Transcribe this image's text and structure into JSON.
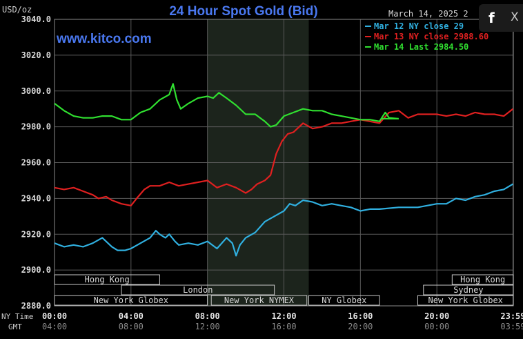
{
  "chart_data": {
    "type": "line",
    "title": "24 Hour Spot Gold (Bid)",
    "y_unit_label": "USD/oz",
    "date": "March 14, 2025 2",
    "watermark": "www.kitco.com",
    "ylim": [
      2880,
      3040
    ],
    "yticks": [
      "3040.0",
      "3020.0",
      "3000.0",
      "2980.0",
      "2960.0",
      "2940.0",
      "2920.0",
      "2900.0",
      "2880.0"
    ],
    "xlim_hours": [
      0,
      24
    ],
    "xticks_hours": [
      0,
      4,
      8,
      12,
      16,
      20,
      23.98
    ],
    "xticks_ny": [
      "00:00",
      "04:00",
      "08:00",
      "12:00",
      "16:00",
      "20:00",
      "23:59"
    ],
    "xticks_gmt": [
      "04:00",
      "08:00",
      "12:00",
      "16:00",
      "20:00",
      "00:00",
      "03:59"
    ],
    "row_label_ny": "NY Time",
    "row_label_gmt": "GMT",
    "grid": true,
    "legend_position": "top-right",
    "shaded_hours": [
      8,
      13.3
    ],
    "series": [
      {
        "name": "Mar 12 NY close 29",
        "color": "#30b0e0",
        "x": [
          0,
          0.5,
          1.0,
          1.5,
          2.0,
          2.5,
          3.0,
          3.3,
          3.7,
          4.0,
          4.5,
          5.0,
          5.3,
          5.5,
          5.8,
          6.0,
          6.3,
          6.5,
          7.0,
          7.5,
          8.0,
          8.5,
          9.0,
          9.3,
          9.5,
          9.7,
          10.0,
          10.5,
          11.0,
          11.5,
          12.0,
          12.3,
          12.6,
          13.0,
          13.5,
          14.0,
          14.5,
          15.0,
          15.5,
          16.0,
          16.5,
          17.0,
          18.0,
          19.0,
          20.0,
          20.5,
          21.0,
          21.5,
          22.0,
          22.5,
          23.0,
          23.5,
          23.98
        ],
        "y": [
          2915,
          2913,
          2914,
          2913,
          2915,
          2918,
          2913,
          2911,
          2911,
          2912,
          2915,
          2918,
          2922,
          2920,
          2918,
          2920,
          2916,
          2914,
          2915,
          2914,
          2916,
          2912,
          2918,
          2915,
          2908,
          2914,
          2918,
          2921,
          2927,
          2930,
          2933,
          2937,
          2936,
          2939,
          2938,
          2936,
          2937,
          2936,
          2935,
          2933,
          2934,
          2934,
          2935,
          2935,
          2937,
          2937,
          2940,
          2939,
          2941,
          2942,
          2944,
          2945,
          2948
        ]
      },
      {
        "name": "Mar 13 NY close 2988.60",
        "color": "#e02020",
        "x": [
          0,
          0.5,
          1.0,
          1.5,
          2.0,
          2.3,
          2.7,
          3.0,
          3.5,
          4.0,
          4.3,
          4.7,
          5.0,
          5.5,
          6.0,
          6.5,
          7.0,
          7.5,
          8.0,
          8.5,
          9.0,
          9.5,
          10.0,
          10.3,
          10.6,
          11.0,
          11.3,
          11.6,
          11.9,
          12.2,
          12.5,
          13.0,
          13.5,
          14.0,
          14.5,
          15.0,
          15.5,
          16.0,
          16.5,
          17.0,
          17.5,
          18.0,
          18.5,
          19.0,
          19.5,
          20.0,
          20.5,
          21.0,
          21.5,
          22.0,
          22.5,
          23.0,
          23.5,
          23.98
        ],
        "y": [
          2946,
          2945,
          2946,
          2944,
          2942,
          2940,
          2941,
          2939,
          2937,
          2936,
          2940,
          2945,
          2947,
          2947,
          2949,
          2947,
          2948,
          2949,
          2950,
          2946,
          2948,
          2946,
          2943,
          2945,
          2948,
          2950,
          2953,
          2965,
          2972,
          2976,
          2977,
          2982,
          2979,
          2980,
          2982,
          2982,
          2983,
          2984,
          2983,
          2982,
          2988,
          2989,
          2985,
          2987,
          2987,
          2987,
          2986,
          2987,
          2986,
          2988,
          2987,
          2987,
          2986,
          2990
        ]
      },
      {
        "name": "Mar 14 Last 2984.50",
        "color": "#30e030",
        "x": [
          0,
          0.5,
          1.0,
          1.5,
          2.0,
          2.5,
          3.0,
          3.5,
          4.0,
          4.5,
          5.0,
          5.5,
          6.0,
          6.2,
          6.4,
          6.6,
          7.0,
          7.5,
          8.0,
          8.3,
          8.6,
          9.0,
          9.5,
          10.0,
          10.5,
          11.0,
          11.3,
          11.6,
          12.0,
          12.5,
          13.0,
          13.5,
          14.0,
          14.5,
          15.0,
          15.5,
          16.0,
          16.5,
          17.0,
          17.3,
          17.5,
          18.0
        ],
        "y": [
          2993,
          2989,
          2986,
          2985,
          2985,
          2986,
          2986,
          2984,
          2984,
          2988,
          2990,
          2995,
          2998,
          3004,
          2995,
          2990,
          2993,
          2996,
          2997,
          2996,
          2999,
          2996,
          2992,
          2987,
          2987,
          2983,
          2980,
          2981,
          2986,
          2988,
          2990,
          2989,
          2989,
          2987,
          2986,
          2985,
          2984,
          2984,
          2983,
          2988,
          2985,
          2984.5
        ]
      }
    ],
    "sessions": [
      {
        "name": "Hong Kong",
        "row": 0,
        "start": 0,
        "end": 5.5
      },
      {
        "name": "London",
        "row": 1,
        "start": 3.5,
        "end": 11.5
      },
      {
        "name": "New York Globex",
        "row": 2,
        "start": 0,
        "end": 8
      },
      {
        "name": "New York NYMEX",
        "row": 2,
        "start": 8.2,
        "end": 13.2
      },
      {
        "name": "NY Globex",
        "row": 2,
        "start": 13.3,
        "end": 17.0
      },
      {
        "name": "Hong Kong",
        "row": 0,
        "start": 20.8,
        "end": 24
      },
      {
        "name": "Sydney",
        "row": 1,
        "start": 19.3,
        "end": 24
      },
      {
        "name": "New York Globex",
        "row": 2,
        "start": 19.0,
        "end": 24
      }
    ]
  },
  "share": {
    "facebook_icon": "f",
    "close_icon": "X"
  }
}
